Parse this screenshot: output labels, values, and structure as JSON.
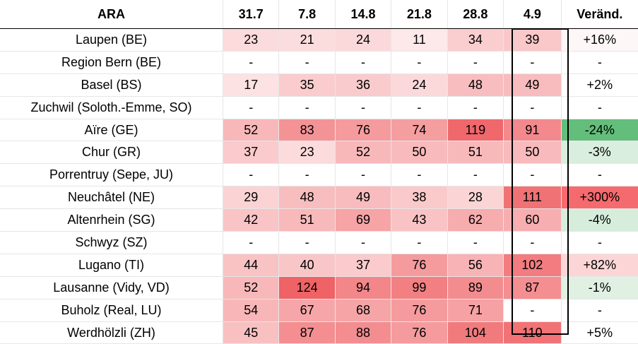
{
  "table": {
    "headers": [
      "ARA",
      "31.7",
      "7.8",
      "14.8",
      "21.8",
      "28.8",
      "4.9",
      "Veränd."
    ],
    "rows": [
      {
        "name": "Laupen (BE)",
        "values": [
          "23",
          "21",
          "24",
          "11",
          "34",
          "39"
        ],
        "change": "+16%"
      },
      {
        "name": "Region Bern (BE)",
        "values": [
          "-",
          "-",
          "-",
          "-",
          "-",
          "-"
        ],
        "change": "-"
      },
      {
        "name": "Basel (BS)",
        "values": [
          "17",
          "35",
          "36",
          "24",
          "48",
          "49"
        ],
        "change": "+2%"
      },
      {
        "name": "Zuchwil (Soloth.-Emme, SO)",
        "values": [
          "-",
          "-",
          "-",
          "-",
          "-",
          "-"
        ],
        "change": "-"
      },
      {
        "name": "Aïre (GE)",
        "values": [
          "52",
          "83",
          "76",
          "74",
          "119",
          "91"
        ],
        "change": "-24%"
      },
      {
        "name": "Chur (GR)",
        "values": [
          "37",
          "23",
          "52",
          "50",
          "51",
          "50"
        ],
        "change": "-3%"
      },
      {
        "name": "Porrentruy (Sepe, JU)",
        "values": [
          "-",
          "-",
          "-",
          "-",
          "-",
          "-"
        ],
        "change": "-"
      },
      {
        "name": "Neuchâtel (NE)",
        "values": [
          "29",
          "48",
          "49",
          "38",
          "28",
          "111"
        ],
        "change": "+300%"
      },
      {
        "name": "Altenrhein (SG)",
        "values": [
          "42",
          "51",
          "69",
          "43",
          "62",
          "60"
        ],
        "change": "-4%"
      },
      {
        "name": "Schwyz (SZ)",
        "values": [
          "-",
          "-",
          "-",
          "-",
          "-",
          "-"
        ],
        "change": "-"
      },
      {
        "name": "Lugano (TI)",
        "values": [
          "44",
          "40",
          "37",
          "76",
          "56",
          "102"
        ],
        "change": "+82%"
      },
      {
        "name": "Lausanne (Vidy, VD)",
        "values": [
          "52",
          "124",
          "94",
          "99",
          "89",
          "87"
        ],
        "change": "-1%"
      },
      {
        "name": "Buholz (Real, LU)",
        "values": [
          "54",
          "67",
          "68",
          "76",
          "71",
          "-"
        ],
        "change": "-"
      },
      {
        "name": "Werdhölzli (ZH)",
        "values": [
          "45",
          "87",
          "88",
          "76",
          "104",
          "110"
        ],
        "change": "+5%"
      }
    ]
  },
  "colors": {
    "heat_low": "#fde9ea",
    "heat_high": "#ef6266",
    "change_positive_strong": "#f56a6e",
    "change_negative_strong": "#63be7b",
    "change_negative_light": "#e3f2e6",
    "header_rule": "#000000",
    "highlight_box": "#000000"
  },
  "scale": {
    "min": 11,
    "max": 124,
    "change_min_pct": -24,
    "change_max_pct": 300
  }
}
